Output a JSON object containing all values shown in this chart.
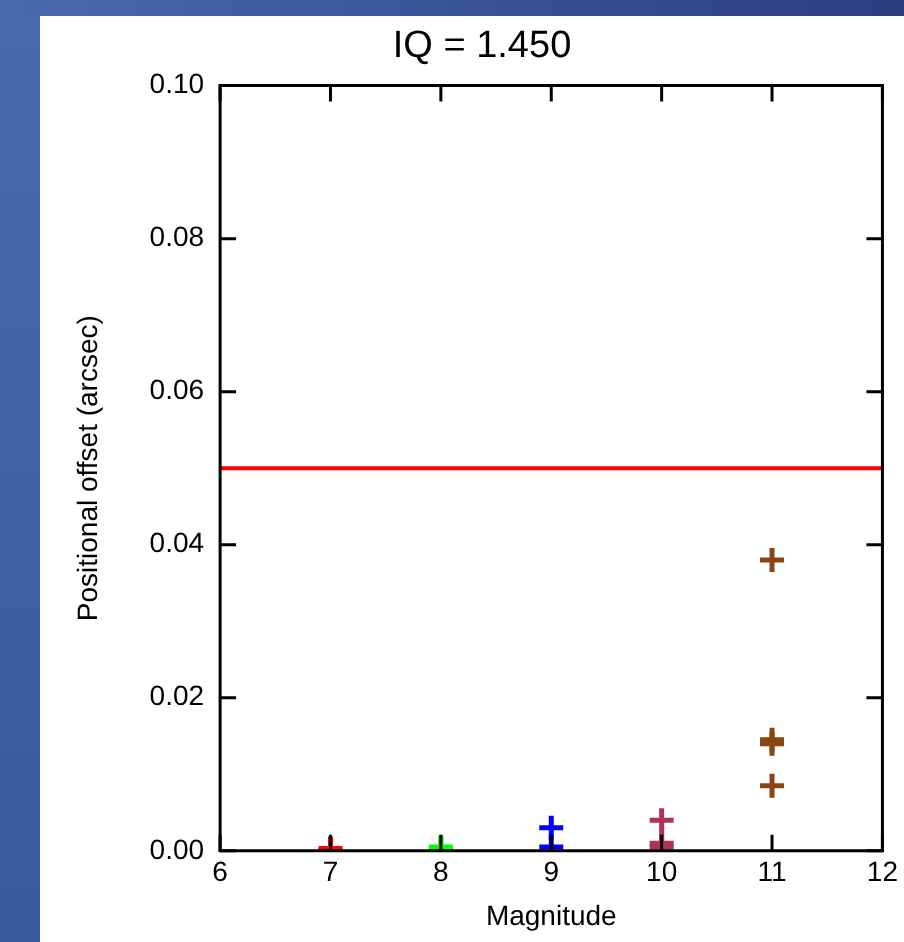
{
  "chart_data": {
    "type": "scatter",
    "title": "IQ = 1.450",
    "xlabel": "Magnitude",
    "ylabel": "Positional offset (arcsec)",
    "xlim": [
      6,
      12
    ],
    "xticks": [
      6,
      7,
      8,
      9,
      10,
      11,
      12
    ],
    "ylim": [
      0,
      0.1
    ],
    "yticks": [
      {
        "value": 0,
        "label": "0.00"
      },
      {
        "value": 0.02,
        "label": "0.02"
      },
      {
        "value": 0.04,
        "label": "0.04"
      },
      {
        "value": 0.06,
        "label": "0.06"
      },
      {
        "value": 0.08,
        "label": "0.08"
      },
      {
        "value": 0.1,
        "label": "0.10"
      }
    ],
    "marker": "cross",
    "grid": false,
    "legend": false,
    "series": [
      {
        "color": "#ff0000",
        "x": [
          7,
          7
        ],
        "values": [
          0,
          0.0003
        ]
      },
      {
        "color": "#00ff00",
        "x": [
          8,
          8
        ],
        "values": [
          0.0005,
          0.0002
        ]
      },
      {
        "color": "#0000ff",
        "x": [
          9,
          9
        ],
        "values": [
          0.003,
          0.0005
        ]
      },
      {
        "color": "#b03060",
        "x": [
          10,
          10,
          10
        ],
        "values": [
          0.004,
          0.001,
          0.0005
        ]
      },
      {
        "color": "#8b4513",
        "x": [
          11,
          11,
          11,
          11
        ],
        "values": [
          0.038,
          0.0145,
          0.014,
          0.0085
        ]
      }
    ],
    "ref_lines": [
      {
        "axis": "y",
        "value": 0.05,
        "color": "#ff0000"
      }
    ]
  }
}
